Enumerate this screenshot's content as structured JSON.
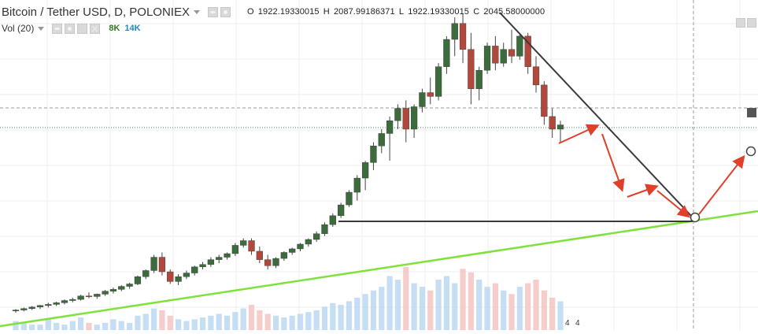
{
  "legend": {
    "title": "Bitcoin / Tether USD, D, POLONIEX",
    "ohlc": {
      "o_label": "O",
      "o_value": "1922.19330015",
      "h_label": "H",
      "h_value": "2087.99186371",
      "l_label": "L",
      "l_value": "1922.19330015",
      "c_label": "C",
      "c_value": "2045.58000000"
    },
    "volume": {
      "name": "Vol (20)",
      "value_a": "8K",
      "value_b": "14K"
    },
    "volume_scale_labels": [
      "4",
      "4"
    ]
  },
  "colors": {
    "background": "#ffffff",
    "candle_up": "#3c6b3c",
    "candle_down": "#b0483c",
    "wick": "#444444",
    "trendline_green": "#7fe13c",
    "trendline_dark": "#3a3a3a",
    "arrow": "#e0402a",
    "volume_up": "#b8d6f0",
    "volume_down": "#f2c2bf",
    "grid": "#eeeeee"
  },
  "chart_data": {
    "type": "candlestick",
    "symbol": "Bitcoin / Tether USD",
    "interval": "D",
    "exchange": "POLONIEX",
    "last_bar": {
      "open": 1922.19330015,
      "high": 2087.99186371,
      "low": 1922.19330015,
      "close": 2045.58
    },
    "candles": [
      {
        "o": 940,
        "h": 960,
        "l": 920,
        "c": 950
      },
      {
        "o": 950,
        "h": 975,
        "l": 935,
        "c": 965
      },
      {
        "o": 965,
        "h": 990,
        "l": 950,
        "c": 980
      },
      {
        "o": 980,
        "h": 1000,
        "l": 960,
        "c": 995
      },
      {
        "o": 995,
        "h": 1020,
        "l": 975,
        "c": 1005
      },
      {
        "o": 1005,
        "h": 1030,
        "l": 990,
        "c": 1020
      },
      {
        "o": 1020,
        "h": 1050,
        "l": 1005,
        "c": 1040
      },
      {
        "o": 1040,
        "h": 1065,
        "l": 1025,
        "c": 1050
      },
      {
        "o": 1050,
        "h": 1090,
        "l": 1040,
        "c": 1080
      },
      {
        "o": 1080,
        "h": 1110,
        "l": 1060,
        "c": 1075
      },
      {
        "o": 1075,
        "h": 1100,
        "l": 1055,
        "c": 1095
      },
      {
        "o": 1095,
        "h": 1130,
        "l": 1080,
        "c": 1120
      },
      {
        "o": 1120,
        "h": 1150,
        "l": 1100,
        "c": 1135
      },
      {
        "o": 1135,
        "h": 1170,
        "l": 1120,
        "c": 1160
      },
      {
        "o": 1160,
        "h": 1190,
        "l": 1140,
        "c": 1180
      },
      {
        "o": 1180,
        "h": 1250,
        "l": 1170,
        "c": 1240
      },
      {
        "o": 1240,
        "h": 1300,
        "l": 1220,
        "c": 1290
      },
      {
        "o": 1290,
        "h": 1420,
        "l": 1270,
        "c": 1400
      },
      {
        "o": 1400,
        "h": 1440,
        "l": 1250,
        "c": 1280
      },
      {
        "o": 1280,
        "h": 1300,
        "l": 1180,
        "c": 1200
      },
      {
        "o": 1200,
        "h": 1260,
        "l": 1170,
        "c": 1240
      },
      {
        "o": 1240,
        "h": 1290,
        "l": 1220,
        "c": 1270
      },
      {
        "o": 1270,
        "h": 1330,
        "l": 1250,
        "c": 1320
      },
      {
        "o": 1320,
        "h": 1360,
        "l": 1300,
        "c": 1340
      },
      {
        "o": 1340,
        "h": 1400,
        "l": 1320,
        "c": 1380
      },
      {
        "o": 1380,
        "h": 1420,
        "l": 1350,
        "c": 1400
      },
      {
        "o": 1400,
        "h": 1440,
        "l": 1380,
        "c": 1430
      },
      {
        "o": 1430,
        "h": 1520,
        "l": 1410,
        "c": 1500
      },
      {
        "o": 1500,
        "h": 1560,
        "l": 1480,
        "c": 1540
      },
      {
        "o": 1540,
        "h": 1560,
        "l": 1420,
        "c": 1450
      },
      {
        "o": 1450,
        "h": 1490,
        "l": 1350,
        "c": 1380
      },
      {
        "o": 1380,
        "h": 1420,
        "l": 1300,
        "c": 1330
      },
      {
        "o": 1330,
        "h": 1400,
        "l": 1310,
        "c": 1390
      },
      {
        "o": 1390,
        "h": 1450,
        "l": 1370,
        "c": 1440
      },
      {
        "o": 1440,
        "h": 1480,
        "l": 1420,
        "c": 1470
      },
      {
        "o": 1470,
        "h": 1520,
        "l": 1450,
        "c": 1510
      },
      {
        "o": 1510,
        "h": 1560,
        "l": 1490,
        "c": 1550
      },
      {
        "o": 1550,
        "h": 1620,
        "l": 1530,
        "c": 1600
      },
      {
        "o": 1600,
        "h": 1700,
        "l": 1580,
        "c": 1680
      },
      {
        "o": 1680,
        "h": 1780,
        "l": 1660,
        "c": 1760
      },
      {
        "o": 1760,
        "h": 1880,
        "l": 1740,
        "c": 1860
      },
      {
        "o": 1860,
        "h": 2000,
        "l": 1840,
        "c": 1980
      },
      {
        "o": 1980,
        "h": 2150,
        "l": 1900,
        "c": 2120
      },
      {
        "o": 2120,
        "h": 2300,
        "l": 2000,
        "c": 2280
      },
      {
        "o": 2280,
        "h": 2500,
        "l": 2200,
        "c": 2460
      },
      {
        "o": 2460,
        "h": 2650,
        "l": 2380,
        "c": 2600
      },
      {
        "o": 2600,
        "h": 2800,
        "l": 2300,
        "c": 2750
      },
      {
        "o": 2750,
        "h": 2950,
        "l": 2650,
        "c": 2900
      },
      {
        "o": 2900,
        "h": 3000,
        "l": 2500,
        "c": 2650
      },
      {
        "o": 2650,
        "h": 2950,
        "l": 2550,
        "c": 2920
      },
      {
        "o": 2920,
        "h": 3150,
        "l": 2850,
        "c": 3100
      },
      {
        "o": 3100,
        "h": 3300,
        "l": 2950,
        "c": 3050
      },
      {
        "o": 3050,
        "h": 3500,
        "l": 3000,
        "c": 3450
      },
      {
        "o": 3450,
        "h": 3900,
        "l": 3350,
        "c": 3850
      },
      {
        "o": 3850,
        "h": 4200,
        "l": 3600,
        "c": 4100
      },
      {
        "o": 4100,
        "h": 4250,
        "l": 3500,
        "c": 3700
      },
      {
        "o": 3700,
        "h": 3950,
        "l": 2950,
        "c": 3150
      },
      {
        "o": 3150,
        "h": 3450,
        "l": 3000,
        "c": 3400
      },
      {
        "o": 3400,
        "h": 3800,
        "l": 3350,
        "c": 3750
      },
      {
        "o": 3750,
        "h": 3900,
        "l": 3400,
        "c": 3500
      },
      {
        "o": 3500,
        "h": 3800,
        "l": 3450,
        "c": 3700
      },
      {
        "o": 3700,
        "h": 4000,
        "l": 3500,
        "c": 3600
      },
      {
        "o": 3600,
        "h": 3950,
        "l": 3550,
        "c": 3900
      },
      {
        "o": 3900,
        "h": 3950,
        "l": 3350,
        "c": 3450
      },
      {
        "o": 3450,
        "h": 3600,
        "l": 3100,
        "c": 3200
      },
      {
        "o": 3200,
        "h": 3250,
        "l": 2700,
        "c": 2800
      },
      {
        "o": 2800,
        "h": 2900,
        "l": 2550,
        "c": 2650
      },
      {
        "o": 2650,
        "h": 2750,
        "l": 2500,
        "c": 2700
      }
    ],
    "volume": [
      5,
      4,
      3,
      3,
      6,
      4,
      3,
      5,
      7,
      4,
      3,
      4,
      6,
      5,
      4,
      8,
      9,
      12,
      11,
      8,
      6,
      5,
      6,
      7,
      8,
      9,
      8,
      10,
      12,
      14,
      11,
      9,
      8,
      7,
      8,
      9,
      10,
      11,
      13,
      15,
      14,
      16,
      18,
      20,
      22,
      24,
      30,
      28,
      35,
      26,
      24,
      22,
      28,
      30,
      26,
      34,
      32,
      28,
      24,
      26,
      22,
      20,
      24,
      26,
      28,
      22,
      18,
      16
    ],
    "drawings": {
      "support_line": "green ascending trendline along the lows",
      "horizontal_level": "dark horizontal line at the prior peak",
      "descending_line": "dark line from the all-time high down to the target point",
      "projection": "red arrows pointing down to the intersection circle, then up"
    }
  }
}
